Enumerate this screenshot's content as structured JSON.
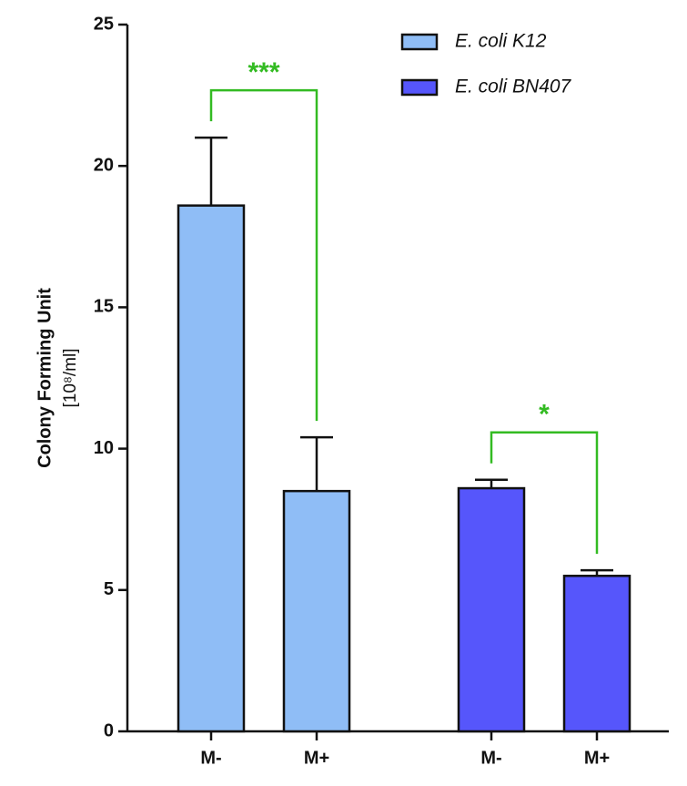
{
  "chart_data": {
    "type": "bar",
    "ylabel": "Colony Forming Unit",
    "ylabel_unit": "[10⁸/ml]",
    "categories": [
      "M-",
      "M+",
      "M-",
      "M+"
    ],
    "series": [
      {
        "name": "E. coli K12",
        "color": "#8fbdf6",
        "values": [
          18.6,
          8.5,
          null,
          null
        ],
        "errors": [
          2.4,
          1.9,
          null,
          null
        ]
      },
      {
        "name": "E. coli BN407",
        "color": "#5656fb",
        "values": [
          null,
          null,
          8.6,
          5.5
        ],
        "errors": [
          null,
          null,
          0.3,
          0.2
        ]
      }
    ],
    "annotations": [
      "***",
      "*"
    ],
    "annotation_color": "#33bb22",
    "ylim": [
      0,
      25
    ],
    "yticks": [
      0,
      5,
      10,
      15,
      20,
      25
    ],
    "legend": "upper right"
  }
}
